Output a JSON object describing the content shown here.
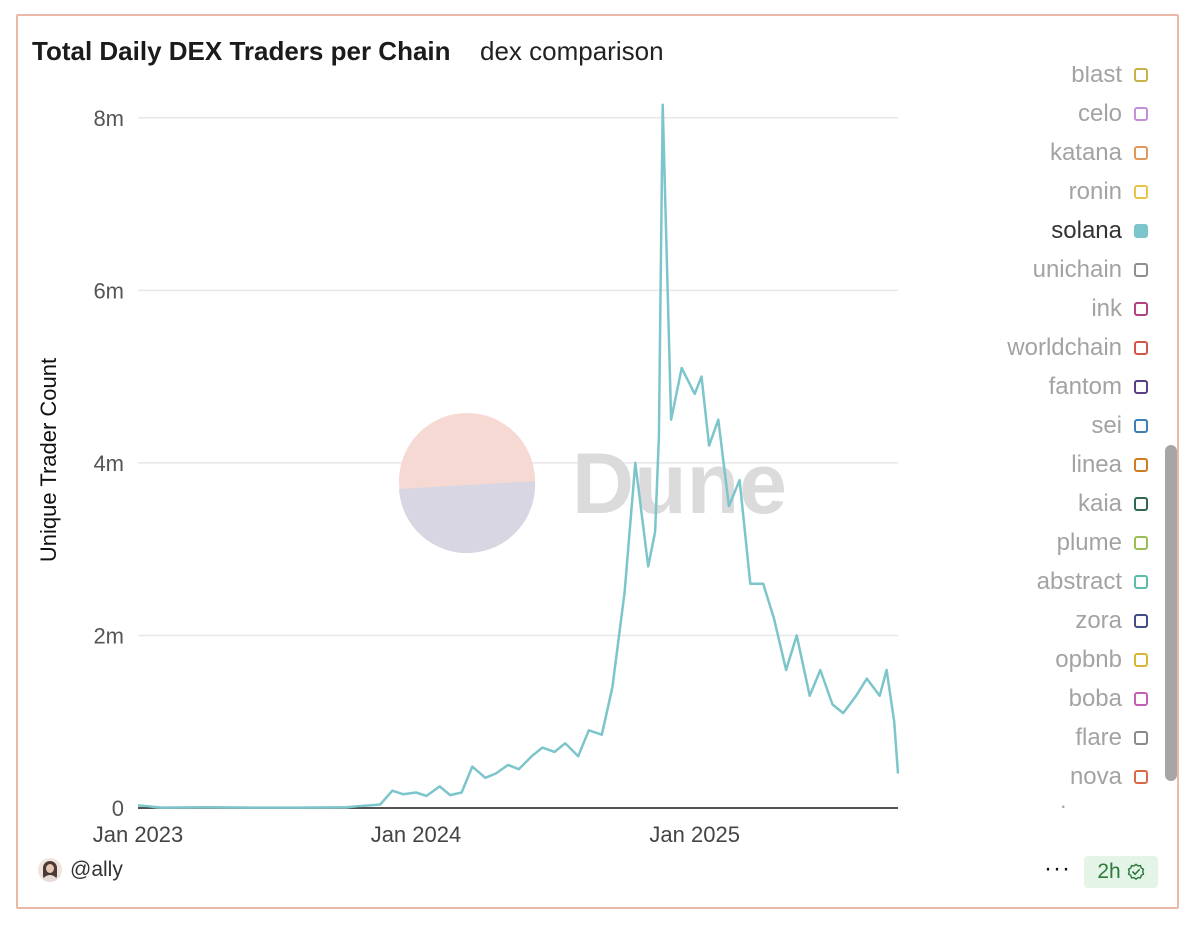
{
  "header": {
    "title": "Total Daily DEX Traders per Chain",
    "subtitle": "dex comparison"
  },
  "chart_data": {
    "type": "line",
    "ylabel": "Unique Trader Count",
    "xlabel": "",
    "ylim": [
      0,
      8600000
    ],
    "yticks": [
      {
        "value": 0,
        "label": "0"
      },
      {
        "value": 2000000,
        "label": "2m"
      },
      {
        "value": 4000000,
        "label": "4m"
      },
      {
        "value": 6000000,
        "label": "6m"
      },
      {
        "value": 8000000,
        "label": "8m"
      }
    ],
    "xlim": [
      "2023-01-01",
      "2025-09-25"
    ],
    "xticks": [
      {
        "value": "2023-01-01",
        "label": "Jan 2023"
      },
      {
        "value": "2024-01-01",
        "label": "Jan 2024"
      },
      {
        "value": "2025-01-01",
        "label": "Jan 2025"
      }
    ],
    "grid": true,
    "series": [
      {
        "name": "solana",
        "color": "#7cc5ca",
        "x": [
          "2023-01-01",
          "2023-02-01",
          "2023-04-01",
          "2023-06-01",
          "2023-08-01",
          "2023-10-01",
          "2023-11-15",
          "2023-12-01",
          "2023-12-15",
          "2024-01-01",
          "2024-01-15",
          "2024-02-01",
          "2024-02-15",
          "2024-03-01",
          "2024-03-15",
          "2024-04-01",
          "2024-04-15",
          "2024-05-01",
          "2024-05-15",
          "2024-06-01",
          "2024-06-15",
          "2024-07-01",
          "2024-07-15",
          "2024-08-01",
          "2024-08-15",
          "2024-09-01",
          "2024-09-15",
          "2024-10-01",
          "2024-10-15",
          "2024-11-01",
          "2024-11-10",
          "2024-11-15",
          "2024-11-20",
          "2024-12-01",
          "2024-12-15",
          "2025-01-01",
          "2025-01-10",
          "2025-01-20",
          "2025-02-01",
          "2025-02-15",
          "2025-03-01",
          "2025-03-15",
          "2025-04-01",
          "2025-04-15",
          "2025-05-01",
          "2025-05-15",
          "2025-06-01",
          "2025-06-15",
          "2025-07-01",
          "2025-07-15",
          "2025-08-01",
          "2025-08-15",
          "2025-09-01",
          "2025-09-10",
          "2025-09-20",
          "2025-09-25"
        ],
        "values": [
          30000,
          5000,
          8000,
          5000,
          5000,
          8000,
          40000,
          200000,
          160000,
          180000,
          140000,
          250000,
          150000,
          180000,
          480000,
          350000,
          400000,
          500000,
          450000,
          600000,
          700000,
          650000,
          750000,
          600000,
          900000,
          850000,
          1400000,
          2500000,
          4000000,
          2800000,
          3200000,
          4300000,
          8150000,
          4500000,
          5100000,
          4800000,
          5000000,
          4200000,
          4500000,
          3500000,
          3800000,
          2600000,
          2600000,
          2200000,
          1600000,
          2000000,
          1300000,
          1600000,
          1200000,
          1100000,
          1300000,
          1500000,
          1300000,
          1600000,
          1000000,
          400000
        ]
      }
    ]
  },
  "legend": {
    "items": [
      {
        "label": "blast",
        "color": "#c9b14a",
        "active": false
      },
      {
        "label": "celo",
        "color": "#c58ed8",
        "active": false
      },
      {
        "label": "katana",
        "color": "#e0975a",
        "active": false
      },
      {
        "label": "ronin",
        "color": "#e9c24a",
        "active": false
      },
      {
        "label": "solana",
        "color": "#7cc5ca",
        "active": true
      },
      {
        "label": "unichain",
        "color": "#8f8f8f",
        "active": false
      },
      {
        "label": "ink",
        "color": "#b0437f",
        "active": false
      },
      {
        "label": "worldchain",
        "color": "#d0584a",
        "active": false
      },
      {
        "label": "fantom",
        "color": "#5b3f86",
        "active": false
      },
      {
        "label": "sei",
        "color": "#3d7fb5",
        "active": false
      },
      {
        "label": "linea",
        "color": "#cf7d22",
        "active": false
      },
      {
        "label": "kaia",
        "color": "#2f6a4d",
        "active": false
      },
      {
        "label": "plume",
        "color": "#9bbd55",
        "active": false
      },
      {
        "label": "abstract",
        "color": "#5bbcab",
        "active": false
      },
      {
        "label": "zora",
        "color": "#424c86",
        "active": false
      },
      {
        "label": "opbnb",
        "color": "#d8b732",
        "active": false
      },
      {
        "label": "boba",
        "color": "#c260b8",
        "active": false
      },
      {
        "label": "flare",
        "color": "#8a8a8a",
        "active": false
      },
      {
        "label": "nova",
        "color": "#d86a4a",
        "active": false
      },
      {
        "label": "zksync",
        "color": "#4c3f8a",
        "active": false
      }
    ]
  },
  "watermark": {
    "text": "Dune"
  },
  "footer": {
    "user": "@ally",
    "more_label": "···",
    "age_badge": "2h"
  }
}
